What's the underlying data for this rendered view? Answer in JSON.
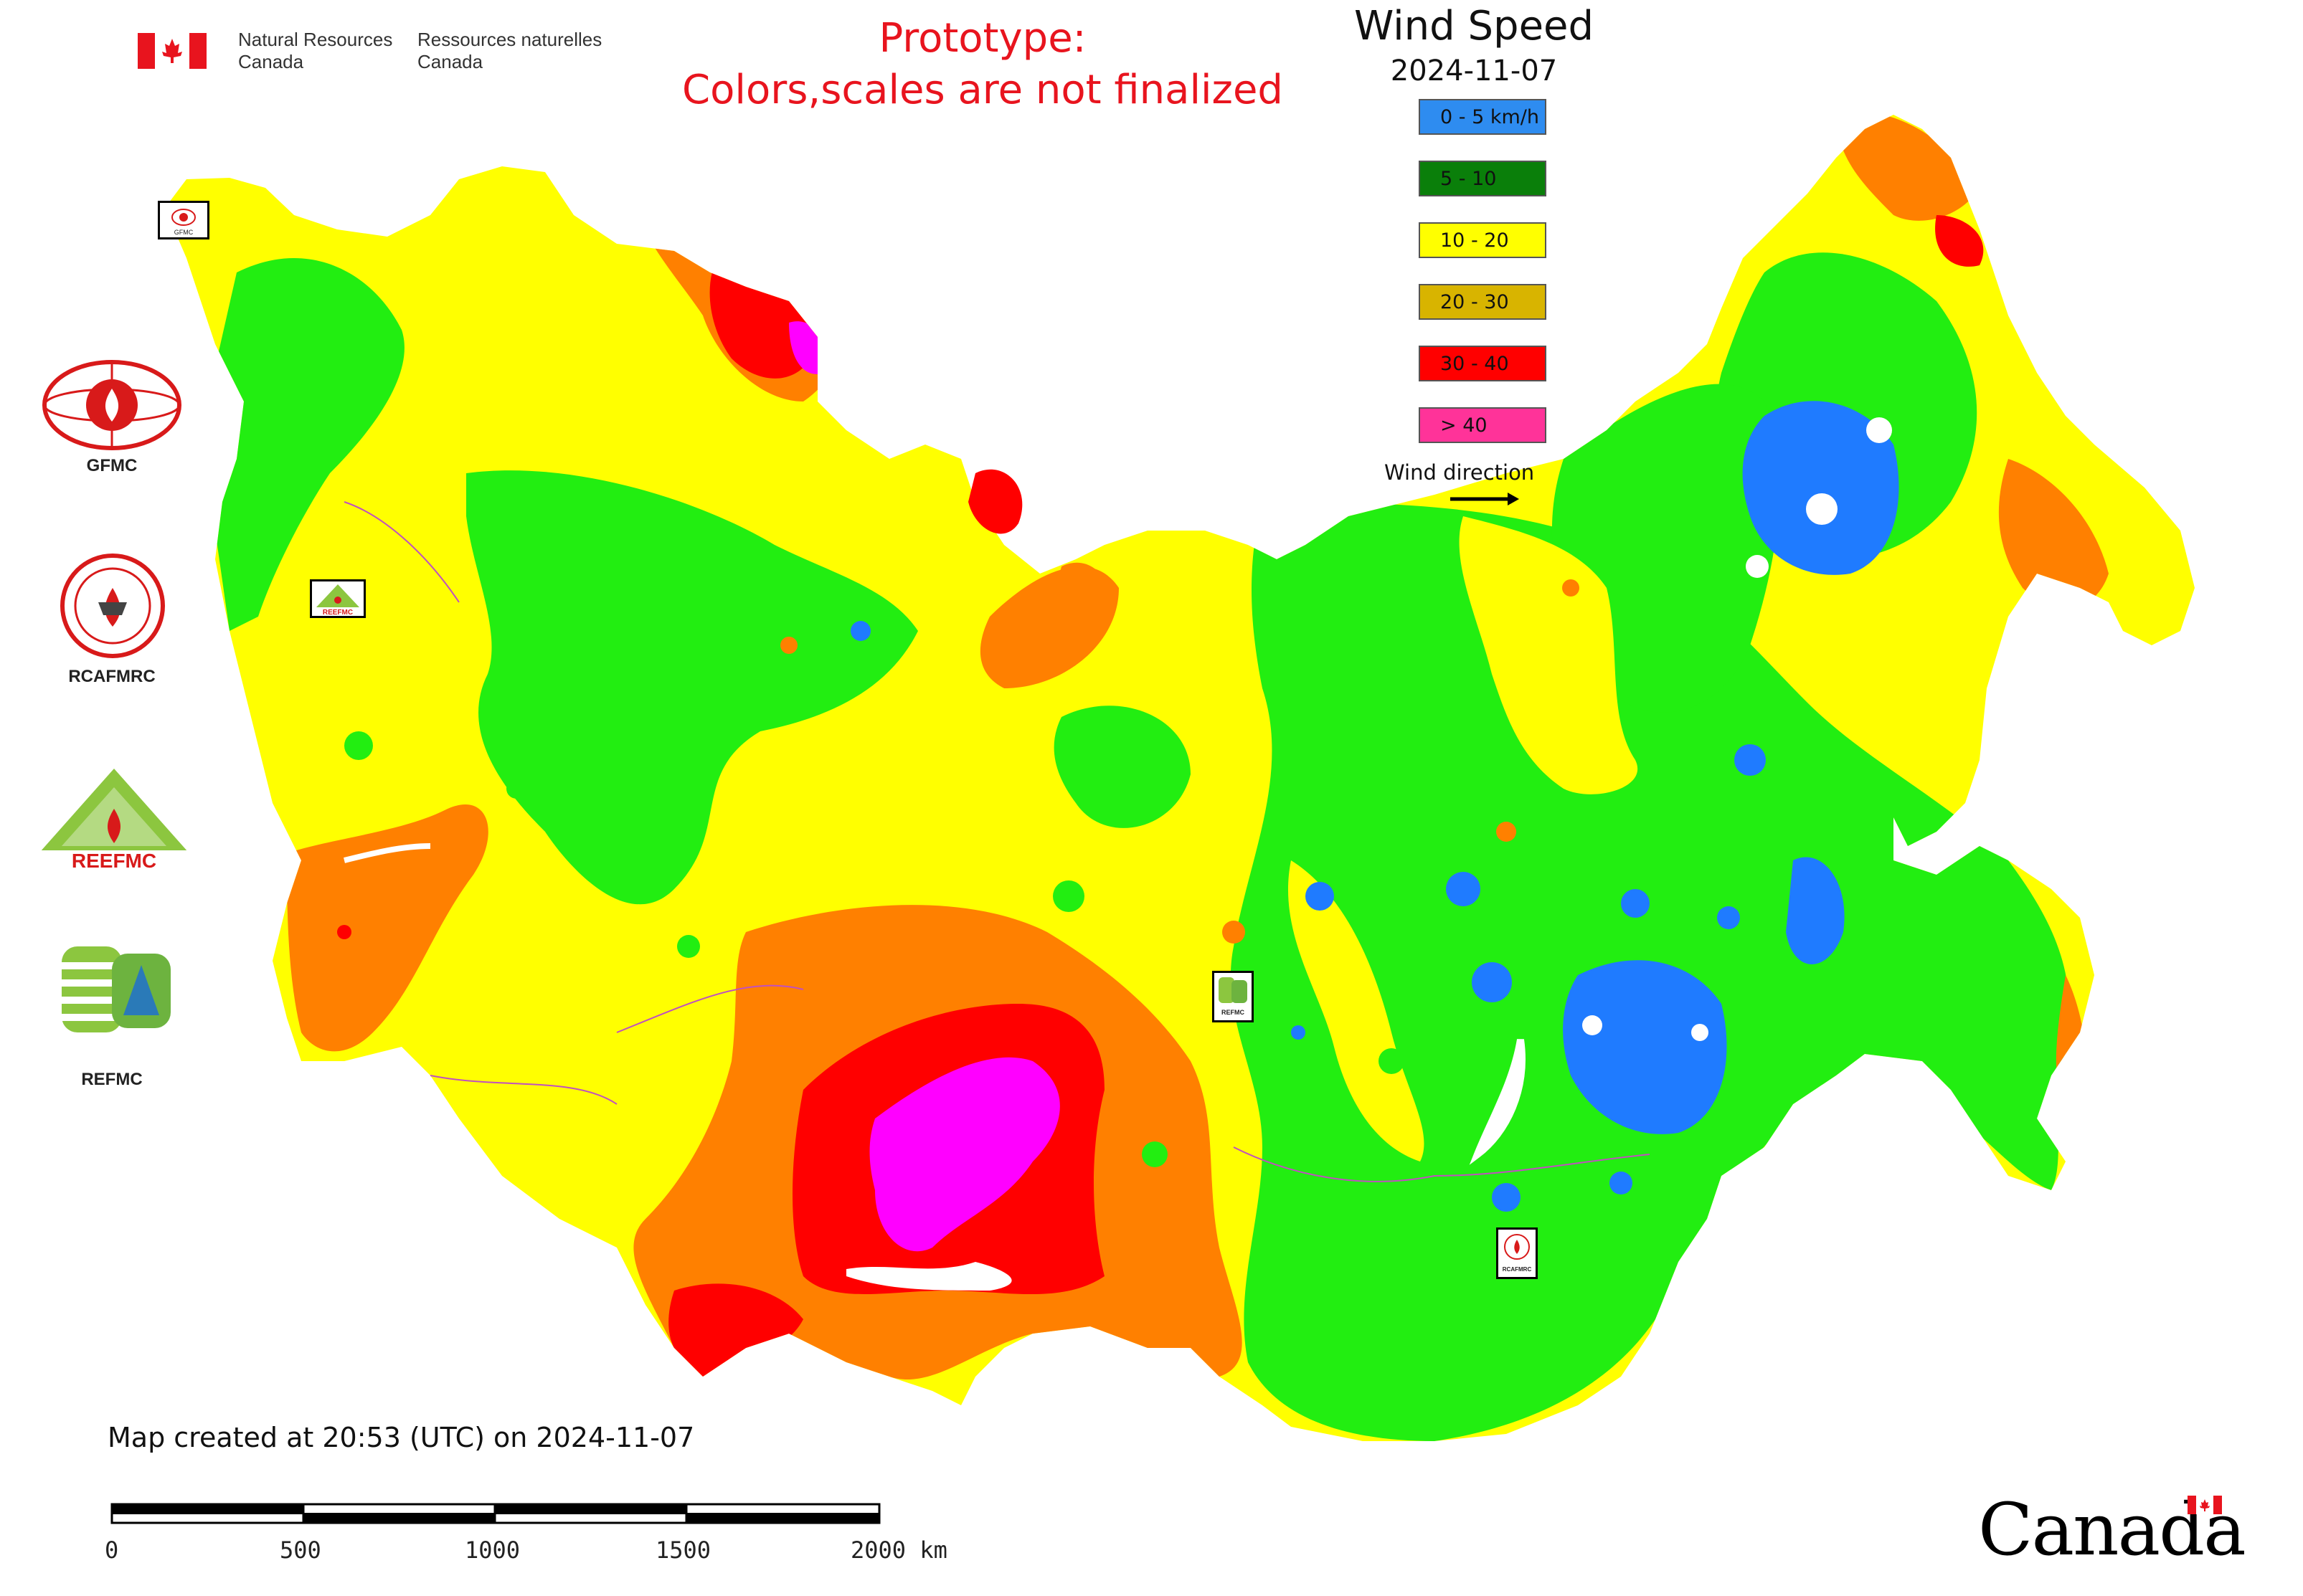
{
  "header": {
    "nrcan_en": [
      "Natural Resources",
      "Canada"
    ],
    "nrcan_fr": [
      "Ressources naturelles",
      "Canada"
    ],
    "prototype_notice": [
      "Prototype:",
      "Colors,scales are not finalized"
    ]
  },
  "legend": {
    "title": "Wind Speed",
    "date": "2024-11-07",
    "classes": [
      {
        "label": "0 - 5 km/h",
        "color": "#2e8cf0"
      },
      {
        "label": "5 - 10",
        "color": "#0a7f0a"
      },
      {
        "label": "10 - 20",
        "color": "#ffff00"
      },
      {
        "label": "20 - 30",
        "color": "#d8b400"
      },
      {
        "label": "30 - 40",
        "color": "#ff0000"
      },
      {
        "label": "> 40",
        "color": "#ff3399"
      }
    ],
    "wind_direction_label": "Wind direction"
  },
  "map_palette": {
    "yellow": "#ffff00",
    "green": "#22ee11",
    "orange": "#ff8000",
    "red": "#ff0000",
    "magenta": "#ff00ff",
    "blue": "#1f7bff",
    "border": "#c050c0"
  },
  "organizations": [
    {
      "name": "GFMC",
      "icon": "gfmc-logo-icon"
    },
    {
      "name": "RCAFMRC",
      "icon": "rcafmrc-logo-icon"
    },
    {
      "name": "REEFMC",
      "icon": "reefmc-logo-icon"
    },
    {
      "name": "REFMC",
      "icon": "refmc-logo-icon"
    }
  ],
  "map_markers": [
    {
      "label": "GFMC",
      "icon": "gfmc-marker-icon"
    },
    {
      "label": "REEFMC",
      "icon": "reefmc-marker-icon"
    },
    {
      "label": "REFMC",
      "icon": "refmc-marker-icon"
    },
    {
      "label": "RCAFMRC",
      "icon": "rcafmrc-marker-icon"
    }
  ],
  "footer": {
    "created": "Map created at 20:53 (UTC) on 2024-11-07",
    "scale_labels": [
      "0",
      "500",
      "1000",
      "1500",
      "2000 km"
    ],
    "canada_wordmark": "Canada"
  }
}
